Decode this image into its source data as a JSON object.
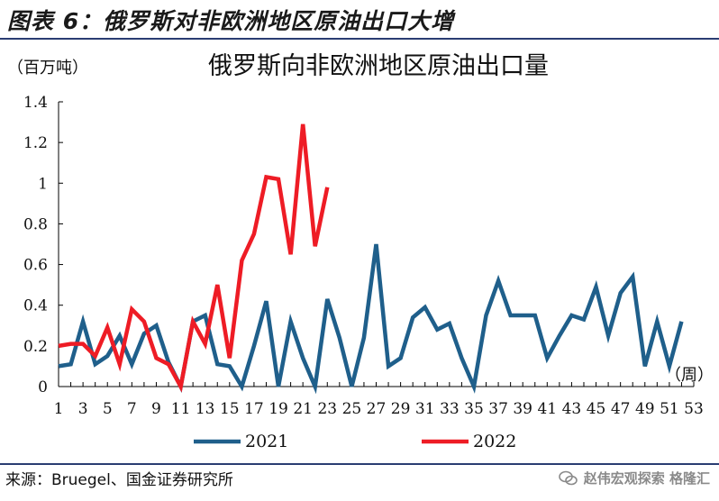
{
  "header": {
    "title": "图表 6：俄罗斯对非欧洲地区原油出口大增"
  },
  "footer": {
    "source": "来源：Bruegel、国金证券研究所",
    "watermark": "赵伟宏观探索  格隆汇"
  },
  "colors": {
    "series_2021": "#1f5f8b",
    "series_2022": "#ee1c25",
    "axis": "#000000",
    "rule": "#2a3d72"
  },
  "chart_data": {
    "type": "line",
    "title": "俄罗斯向非欧洲地区原油出口量",
    "ylabel": "（百万吨）",
    "xlabel": "（周）",
    "ylim": [
      0,
      1.4
    ],
    "yticks": [
      "0",
      "0.2",
      "0.4",
      "0.6",
      "0.8",
      "1",
      "1.2",
      "1.4"
    ],
    "xlim": [
      1,
      53
    ],
    "xticks": [
      "1",
      "3",
      "5",
      "7",
      "9",
      "11",
      "13",
      "15",
      "17",
      "19",
      "21",
      "23",
      "25",
      "27",
      "29",
      "31",
      "33",
      "35",
      "37",
      "39",
      "41",
      "43",
      "45",
      "47",
      "49",
      "51",
      "53"
    ],
    "grid": false,
    "legend_position": "bottom",
    "series": [
      {
        "name": "2021",
        "x": [
          1,
          2,
          3,
          4,
          5,
          6,
          7,
          8,
          9,
          10,
          11,
          12,
          13,
          14,
          15,
          16,
          17,
          18,
          19,
          20,
          21,
          22,
          23,
          24,
          25,
          26,
          27,
          28,
          29,
          30,
          31,
          32,
          33,
          34,
          35,
          36,
          37,
          38,
          39,
          40,
          41,
          42,
          43,
          44,
          45,
          46,
          47,
          48,
          49,
          50,
          51,
          52
        ],
        "values": [
          0.1,
          0.11,
          0.32,
          0.11,
          0.15,
          0.25,
          0.11,
          0.26,
          0.3,
          0.12,
          0.0,
          0.32,
          0.35,
          0.11,
          0.1,
          0.0,
          0.2,
          0.42,
          0.0,
          0.32,
          0.14,
          0.0,
          0.43,
          0.24,
          0.0,
          0.24,
          0.7,
          0.1,
          0.14,
          0.34,
          0.39,
          0.28,
          0.31,
          0.14,
          0.0,
          0.35,
          0.52,
          0.35,
          0.35,
          0.35,
          0.14,
          0.25,
          0.35,
          0.33,
          0.49,
          0.25,
          0.46,
          0.54,
          0.1,
          0.32,
          0.1,
          0.32
        ]
      },
      {
        "name": "2022",
        "x": [
          1,
          2,
          3,
          4,
          5,
          6,
          7,
          8,
          9,
          10,
          11,
          12,
          13,
          14,
          15,
          16,
          17,
          18,
          19,
          20,
          21,
          22,
          23
        ],
        "values": [
          0.2,
          0.21,
          0.21,
          0.15,
          0.29,
          0.11,
          0.38,
          0.32,
          0.14,
          0.11,
          0.0,
          0.32,
          0.21,
          0.5,
          0.14,
          0.62,
          0.75,
          1.03,
          1.02,
          0.65,
          1.29,
          0.69,
          0.98
        ]
      }
    ]
  }
}
